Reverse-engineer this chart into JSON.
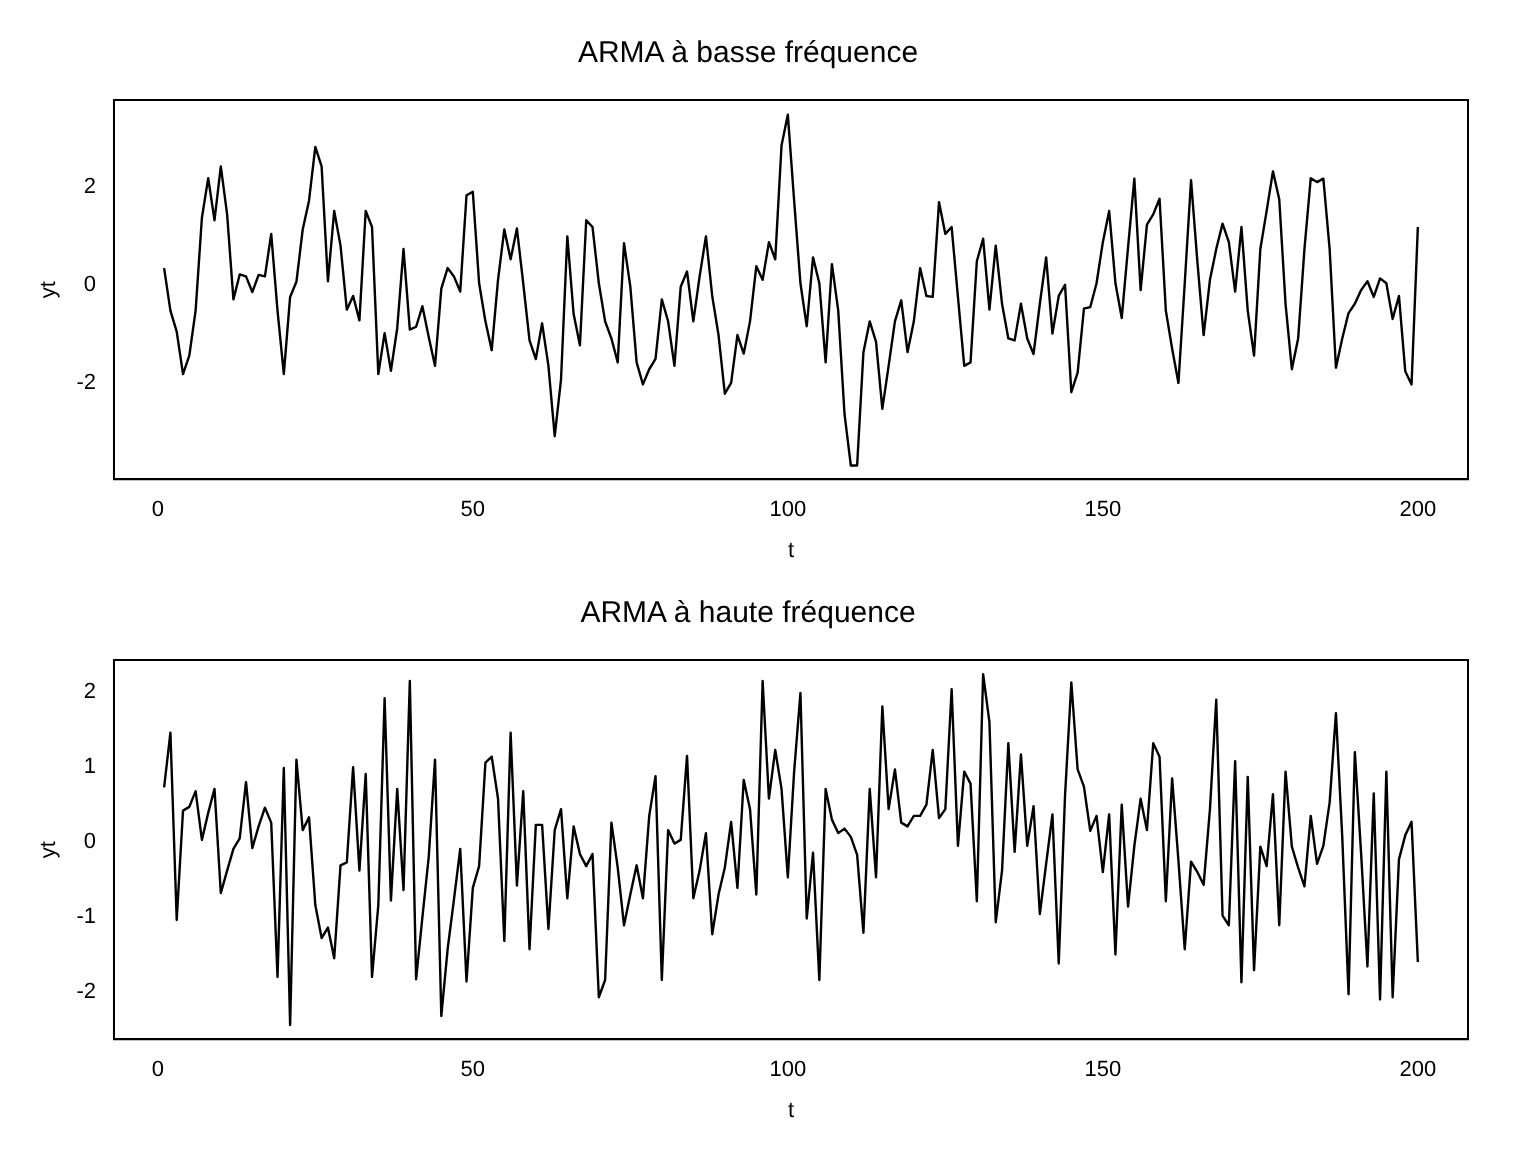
{
  "chart_data": [
    {
      "type": "line",
      "title": "ARMA à basse fréquence",
      "xlabel": "t",
      "ylabel": "yt",
      "color": "#000000",
      "x": [
        1,
        2,
        3,
        4,
        5,
        6,
        7,
        8,
        9,
        10,
        11,
        12,
        13,
        14,
        15,
        16,
        17,
        18,
        19,
        20,
        21,
        22,
        23,
        24,
        25,
        26,
        27,
        28,
        29,
        30,
        31,
        32,
        33,
        34,
        35,
        36,
        37,
        38,
        39,
        40,
        41,
        42,
        43,
        44,
        45,
        46,
        47,
        48,
        49,
        50,
        51,
        52,
        53,
        54,
        55,
        56,
        57,
        58,
        59,
        60,
        61,
        62,
        63,
        64,
        65,
        66,
        67,
        68,
        69,
        70,
        71,
        72,
        73,
        74,
        75,
        76,
        77,
        78,
        79,
        80,
        81,
        82,
        83,
        84,
        85,
        86,
        87,
        88,
        89,
        90,
        91,
        92,
        93,
        94,
        95,
        96,
        97,
        98,
        99,
        100,
        101,
        102,
        103,
        104,
        105,
        106,
        107,
        108,
        109,
        110,
        111,
        112,
        113,
        114,
        115,
        116,
        117,
        118,
        119,
        120,
        121,
        122,
        123,
        124,
        125,
        126,
        127,
        128,
        129,
        130,
        131,
        132,
        133,
        134,
        135,
        136,
        137,
        138,
        139,
        140,
        141,
        142,
        143,
        144,
        145,
        146,
        147,
        148,
        149,
        150,
        151,
        152,
        153,
        154,
        155,
        156,
        157,
        158,
        159,
        160,
        161,
        162,
        163,
        164,
        165,
        166,
        167,
        168,
        169,
        170,
        171,
        172,
        173,
        174,
        175,
        176,
        177,
        178,
        179,
        180,
        181,
        182,
        183,
        184,
        185,
        186,
        187,
        188,
        189,
        190,
        191,
        192,
        193,
        194,
        195,
        196,
        197,
        198,
        199,
        200
      ],
      "values": [
        0.34,
        -0.53,
        -0.96,
        -1.83,
        -1.45,
        -0.53,
        1.37,
        2.18,
        1.32,
        2.42,
        1.44,
        -0.3,
        0.21,
        0.17,
        -0.15,
        0.2,
        0.17,
        1.04,
        -0.53,
        -1.83,
        -0.25,
        0.06,
        1.13,
        1.72,
        2.82,
        2.42,
        0.07,
        1.51,
        0.8,
        -0.51,
        -0.23,
        -0.73,
        1.51,
        1.18,
        -1.83,
        -0.99,
        -1.76,
        -0.89,
        0.73,
        -0.92,
        -0.86,
        -0.44,
        -1.07,
        -1.66,
        -0.08,
        0.34,
        0.17,
        -0.14,
        1.83,
        1.9,
        0.03,
        -0.75,
        -1.34,
        0.1,
        1.13,
        0.52,
        1.15,
        0.03,
        -1.14,
        -1.52,
        -0.79,
        -1.66,
        -3.1,
        -1.94,
        0.99,
        -0.6,
        -1.24,
        1.32,
        1.18,
        0.03,
        -0.75,
        -1.1,
        -1.59,
        0.85,
        -0.04,
        -1.59,
        -2.04,
        -1.73,
        -1.52,
        -0.3,
        -0.75,
        -1.66,
        -0.04,
        0.27,
        -0.75,
        0.17,
        0.99,
        -0.23,
        -1.03,
        -2.23,
        -2.01,
        -1.03,
        -1.41,
        -0.75,
        0.38,
        0.1,
        0.87,
        0.52,
        2.85,
        3.48,
        1.72,
        0.03,
        -0.85,
        0.56,
        0.03,
        -1.59,
        0.42,
        -0.53,
        -2.65,
        -3.7,
        -3.7,
        -1.38,
        -0.75,
        -1.17,
        -2.54,
        -1.66,
        -0.75,
        -0.32,
        -1.38,
        -0.75,
        0.34,
        -0.23,
        -0.25,
        1.69,
        1.04,
        1.18,
        -0.25,
        -1.66,
        -1.59,
        0.48,
        0.94,
        -0.51,
        0.8,
        -0.39,
        -1.1,
        -1.14,
        -0.39,
        -1.1,
        -1.42,
        -0.39,
        0.56,
        -1.0,
        -0.23,
        0,
        -2.2,
        -1.8,
        -0.49,
        -0.46,
        0.03,
        0.87,
        1.51,
        0.03,
        -0.68,
        0.76,
        2.17,
        -0.11,
        1.23,
        1.44,
        1.76,
        -0.53,
        -1.31,
        -2.01,
        0.03,
        2.14,
        0.48,
        -1.03,
        0.1,
        0.73,
        1.25,
        0.87,
        -0.14,
        1.18,
        -0.53,
        -1.45,
        0.73,
        1.51,
        2.32,
        1.75,
        -0.39,
        -1.73,
        -1.1,
        0.73,
        2.18,
        2.1,
        2.17,
        0.73,
        -1.7,
        -1.1,
        -0.58,
        -0.39,
        -0.11,
        0.07,
        -0.25,
        0.13,
        0.03,
        -0.7,
        -0.23,
        -1.77,
        -2.04,
        1.18
      ],
      "xlim": [
        -6.96,
        207.96
      ],
      "xticks": [
        0,
        50,
        100,
        150,
        200
      ],
      "ylim": [
        -3.98,
        3.78
      ],
      "yticks": [
        -2,
        0,
        2
      ]
    },
    {
      "type": "line",
      "title": "ARMA à haute fréquence",
      "xlabel": "t",
      "ylabel": "yt",
      "color": "#000000",
      "x": [
        1,
        2,
        3,
        4,
        5,
        6,
        7,
        8,
        9,
        10,
        11,
        12,
        13,
        14,
        15,
        16,
        17,
        18,
        19,
        20,
        21,
        22,
        23,
        24,
        25,
        26,
        27,
        28,
        29,
        30,
        31,
        32,
        33,
        34,
        35,
        36,
        37,
        38,
        39,
        40,
        41,
        42,
        43,
        44,
        45,
        46,
        47,
        48,
        49,
        50,
        51,
        52,
        53,
        54,
        55,
        56,
        57,
        58,
        59,
        60,
        61,
        62,
        63,
        64,
        65,
        66,
        67,
        68,
        69,
        70,
        71,
        72,
        73,
        74,
        75,
        76,
        77,
        78,
        79,
        80,
        81,
        82,
        83,
        84,
        85,
        86,
        87,
        88,
        89,
        90,
        91,
        92,
        93,
        94,
        95,
        96,
        97,
        98,
        99,
        100,
        101,
        102,
        103,
        104,
        105,
        106,
        107,
        108,
        109,
        110,
        111,
        112,
        113,
        114,
        115,
        116,
        117,
        118,
        119,
        120,
        121,
        122,
        123,
        124,
        125,
        126,
        127,
        128,
        129,
        130,
        131,
        132,
        133,
        134,
        135,
        136,
        137,
        138,
        139,
        140,
        141,
        142,
        143,
        144,
        145,
        146,
        147,
        148,
        149,
        150,
        151,
        152,
        153,
        154,
        155,
        156,
        157,
        158,
        159,
        160,
        161,
        162,
        163,
        164,
        165,
        166,
        167,
        168,
        169,
        170,
        171,
        172,
        173,
        174,
        175,
        176,
        177,
        178,
        179,
        180,
        181,
        182,
        183,
        184,
        185,
        186,
        187,
        188,
        189,
        190,
        191,
        192,
        193,
        194,
        195,
        196,
        197,
        198,
        199,
        200
      ],
      "values": [
        0.73,
        1.46,
        -1.04,
        0.42,
        0.47,
        0.68,
        0.03,
        0.39,
        0.71,
        -0.68,
        -0.38,
        -0.09,
        0.05,
        0.8,
        -0.08,
        0.21,
        0.46,
        0.26,
        -1.8,
        0.99,
        -2.44,
        1.1,
        0.16,
        0.33,
        -0.84,
        -1.28,
        -1.14,
        -1.55,
        -0.31,
        -0.27,
        1.0,
        -0.38,
        0.91,
        -1.8,
        -0.84,
        1.92,
        -0.78,
        0.71,
        -0.64,
        2.15,
        -1.83,
        -1.0,
        -0.2,
        1.1,
        -2.32,
        -1.43,
        -0.77,
        -0.09,
        -1.86,
        -0.61,
        -0.32,
        1.06,
        1.14,
        0.58,
        -1.32,
        1.46,
        -0.58,
        0.68,
        -1.43,
        0.23,
        0.23,
        -1.16,
        0.16,
        0.44,
        -0.75,
        0.21,
        -0.16,
        -0.32,
        -0.16,
        -2.07,
        -1.84,
        0.26,
        -0.34,
        -1.11,
        -0.7,
        -0.31,
        -0.75,
        0.35,
        0.88,
        -1.84,
        0.16,
        -0.02,
        0.03,
        1.15,
        -0.75,
        -0.38,
        0.12,
        -1.23,
        -0.7,
        -0.34,
        0.27,
        -0.61,
        0.83,
        0.44,
        -0.7,
        2.15,
        0.58,
        1.23,
        0.71,
        -0.47,
        0.94,
        1.99,
        -1.02,
        -0.14,
        -1.84,
        0.71,
        0.3,
        0.12,
        0.18,
        0.07,
        -0.17,
        -1.21,
        0.71,
        -0.47,
        1.81,
        0.44,
        0.97,
        0.26,
        0.21,
        0.35,
        0.35,
        0.5,
        1.23,
        0.32,
        0.44,
        2.04,
        -0.05,
        0.94,
        0.78,
        -0.79,
        2.24,
        1.6,
        -1.07,
        -0.38,
        1.32,
        -0.13,
        1.17,
        -0.05,
        0.48,
        -0.96,
        -0.29,
        0.37,
        -1.62,
        0.62,
        2.13,
        0.97,
        0.74,
        0.15,
        0.35,
        -0.4,
        0.37,
        -1.5,
        0.5,
        -0.86,
        -0.05,
        0.58,
        0.16,
        1.32,
        1.14,
        -0.79,
        0.85,
        -0.25,
        -1.43,
        -0.26,
        -0.4,
        -0.57,
        0.44,
        1.9,
        -0.98,
        -1.11,
        1.08,
        -1.87,
        0.87,
        -1.71,
        -0.06,
        -0.32,
        0.64,
        -1.11,
        0.94,
        -0.06,
        -0.34,
        -0.59,
        0.35,
        -0.29,
        -0.05,
        0.53,
        1.72,
        0.07,
        -2.03,
        1.2,
        -0.16,
        -1.66,
        0.65,
        -2.1,
        0.94,
        -2.07,
        -0.23,
        0.09,
        0.27,
        -1.6
      ],
      "xlim": [
        -6.96,
        207.96
      ],
      "xticks": [
        0,
        50,
        100,
        150,
        200
      ],
      "ylim": [
        -2.63,
        2.43
      ],
      "yticks": [
        -2,
        -1,
        0,
        1,
        2
      ]
    }
  ]
}
